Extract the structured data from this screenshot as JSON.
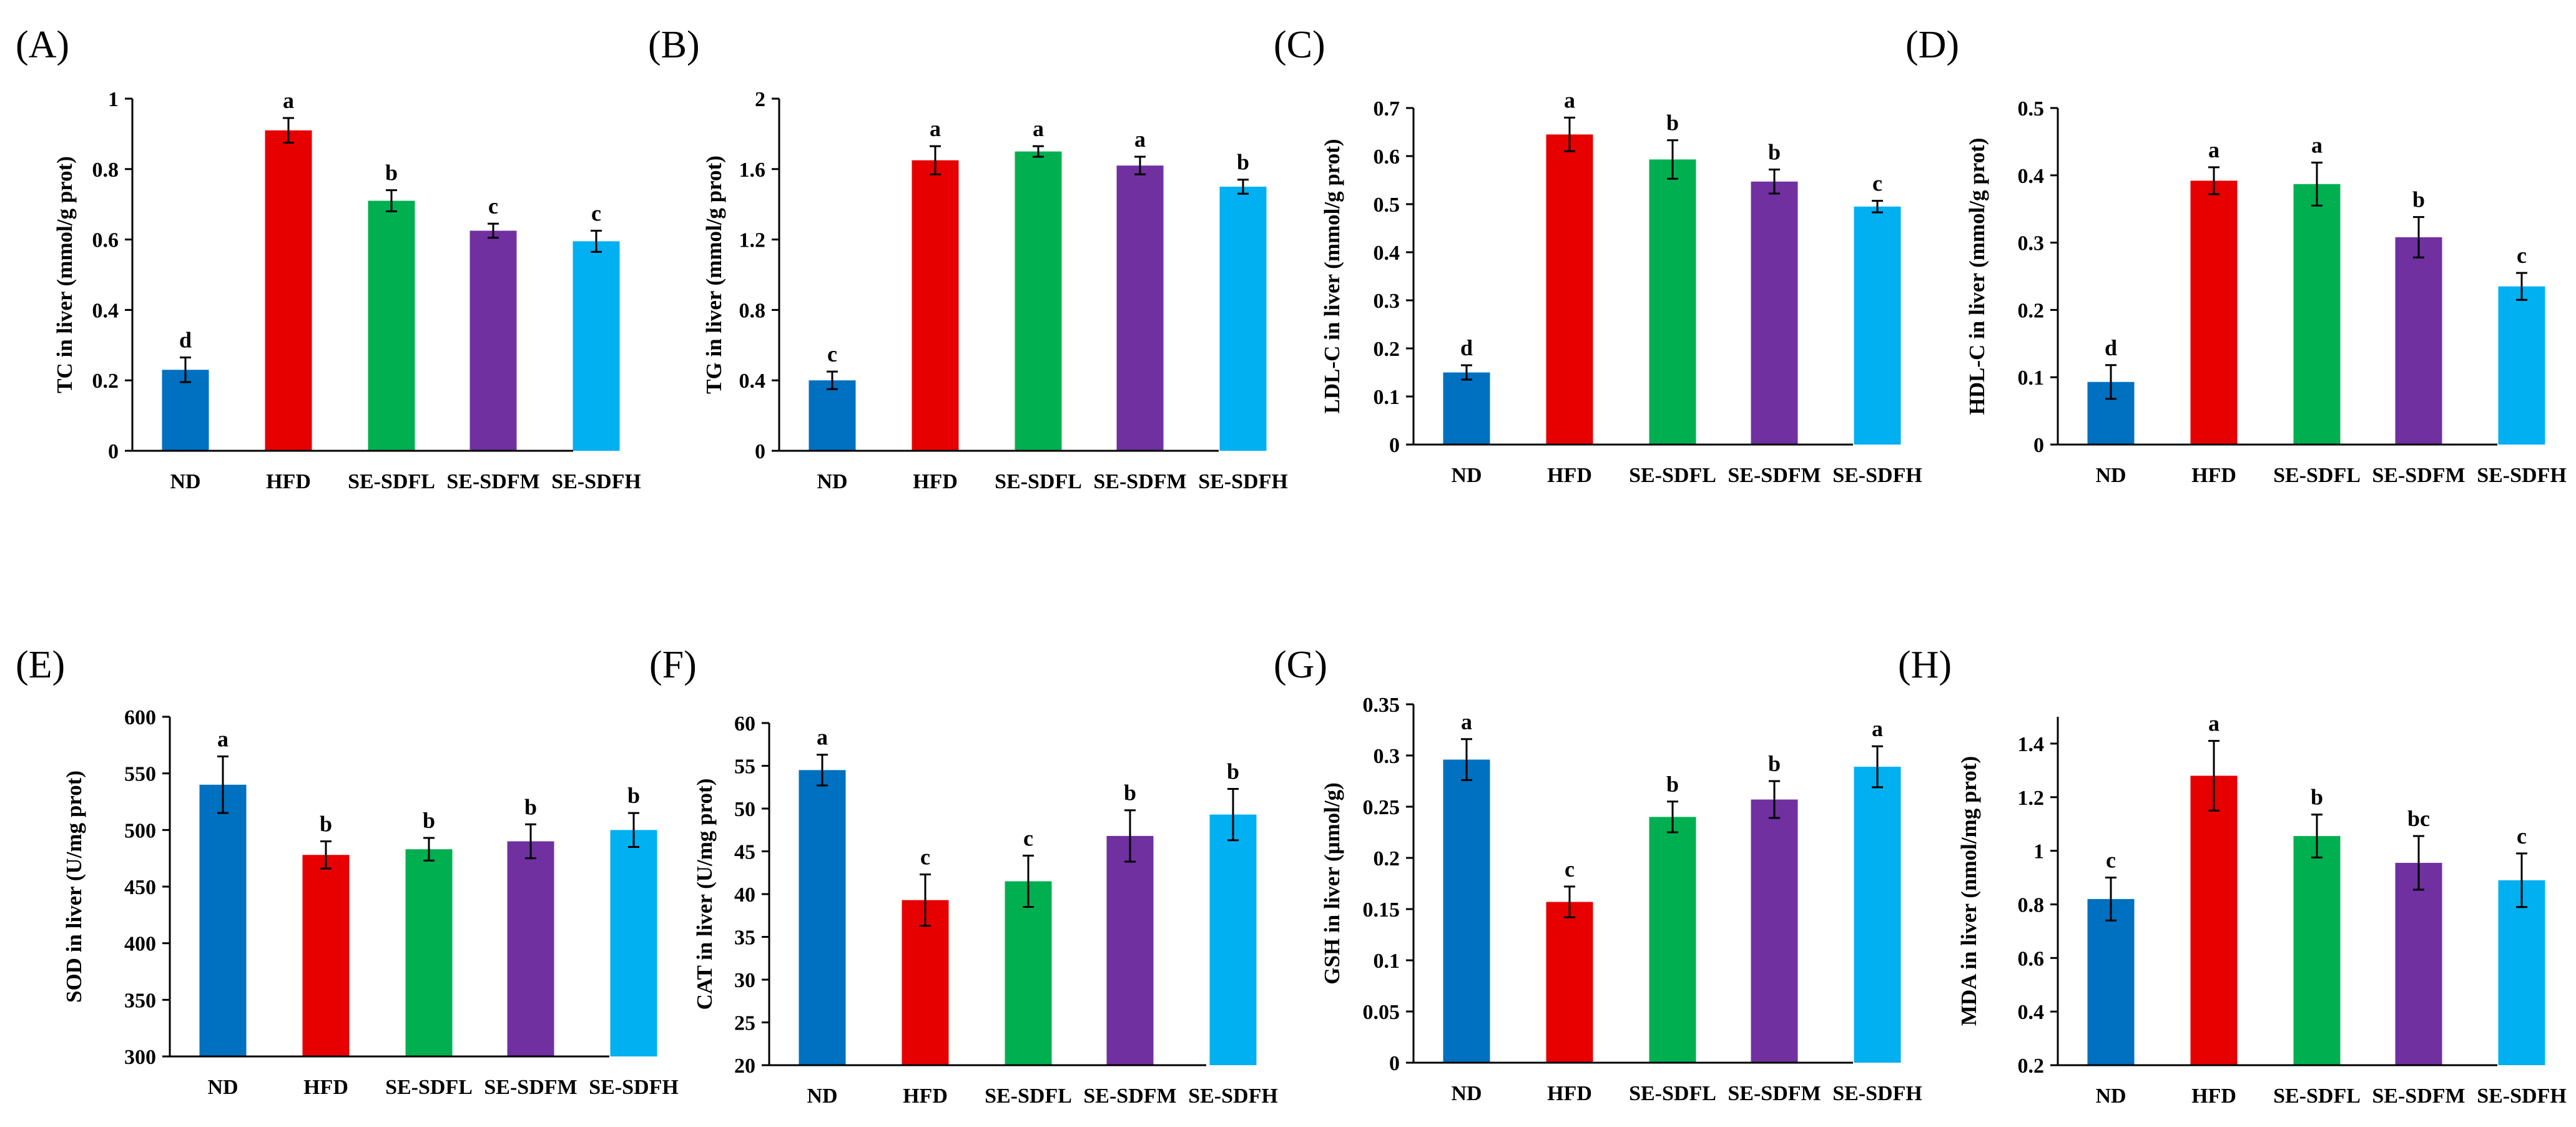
{
  "colors": {
    "ND": "#0070c0",
    "HFD": "#e60000",
    "SE-SDFL": "#00b050",
    "SE-SDFM": "#7030a0",
    "SE-SDFH": "#00b0f0"
  },
  "categories": [
    "ND",
    "HFD",
    "SE-SDFL",
    "SE-SDFM",
    "SE-SDFH"
  ],
  "chart_data": [
    {
      "type": "bar",
      "panel": "(A)",
      "title": "",
      "xlabel": "",
      "ylabel": "TC in liver (mmol/g prot)",
      "categories": [
        "ND",
        "HFD",
        "SE-SDFL",
        "SE-SDFM",
        "SE-SDFH"
      ],
      "values": [
        0.23,
        0.91,
        0.71,
        0.625,
        0.595
      ],
      "errors": [
        0.035,
        0.035,
        0.03,
        0.02,
        0.03
      ],
      "letters": [
        "d",
        "a",
        "b",
        "c",
        "c"
      ],
      "ylim": [
        0,
        1
      ],
      "ticks": [
        0,
        0.2,
        0.4,
        0.6,
        0.8,
        1
      ],
      "tick_labels": [
        "0",
        "0.2",
        "0.4",
        "0.6",
        "0.8",
        "1"
      ]
    },
    {
      "type": "bar",
      "panel": "(B)",
      "title": "",
      "xlabel": "",
      "ylabel": "TG in liver (mmol/g prot)",
      "categories": [
        "ND",
        "HFD",
        "SE-SDFL",
        "SE-SDFM",
        "SE-SDFH"
      ],
      "values": [
        0.4,
        1.65,
        1.7,
        1.62,
        1.5
      ],
      "errors": [
        0.05,
        0.08,
        0.03,
        0.05,
        0.04
      ],
      "letters": [
        "c",
        "a",
        "a",
        "a",
        "b"
      ],
      "ylim": [
        0,
        2
      ],
      "ticks": [
        0,
        0.4,
        0.8,
        1.2,
        1.6,
        2
      ],
      "tick_labels": [
        "0",
        "0.4",
        "0.8",
        "1.2",
        "1.6",
        "2"
      ]
    },
    {
      "type": "bar",
      "panel": "(C)",
      "title": "",
      "xlabel": "",
      "ylabel": "LDL-C in liver (mmol/g prot)",
      "categories": [
        "ND",
        "HFD",
        "SE-SDFL",
        "SE-SDFM",
        "SE-SDFH"
      ],
      "values": [
        0.15,
        0.645,
        0.593,
        0.547,
        0.495
      ],
      "errors": [
        0.015,
        0.035,
        0.04,
        0.025,
        0.012
      ],
      "letters": [
        "d",
        "a",
        "b",
        "b",
        "c"
      ],
      "ylim": [
        0,
        0.7
      ],
      "ticks": [
        0,
        0.1,
        0.2,
        0.3,
        0.4,
        0.5,
        0.6,
        0.7
      ],
      "tick_labels": [
        "0",
        "0.1",
        "0.2",
        "0.3",
        "0.4",
        "0.5",
        "0.6",
        "0.7"
      ]
    },
    {
      "type": "bar",
      "panel": "(D)",
      "title": "",
      "xlabel": "",
      "ylabel": "HDL-C in liver (mmol/g prot)",
      "categories": [
        "ND",
        "HFD",
        "SE-SDFL",
        "SE-SDFM",
        "SE-SDFH"
      ],
      "values": [
        0.093,
        0.392,
        0.387,
        0.308,
        0.235
      ],
      "errors": [
        0.025,
        0.02,
        0.032,
        0.03,
        0.02
      ],
      "letters": [
        "d",
        "a",
        "a",
        "b",
        "c"
      ],
      "ylim": [
        0,
        0.5
      ],
      "ticks": [
        0,
        0.1,
        0.2,
        0.3,
        0.4,
        0.5
      ],
      "tick_labels": [
        "0",
        "0.1",
        "0.2",
        "0.3",
        "0.4",
        "0.5"
      ]
    },
    {
      "type": "bar",
      "panel": "(E)",
      "title": "",
      "xlabel": "",
      "ylabel": "SOD in liver (U/mg prot)",
      "categories": [
        "ND",
        "HFD",
        "SE-SDFL",
        "SE-SDFM",
        "SE-SDFH"
      ],
      "values": [
        540,
        478,
        483,
        490,
        500
      ],
      "errors": [
        25,
        12,
        10,
        15,
        15
      ],
      "letters": [
        "a",
        "b",
        "b",
        "b",
        "b"
      ],
      "ylim": [
        300,
        600
      ],
      "ticks": [
        300,
        350,
        400,
        450,
        500,
        550,
        600
      ],
      "tick_labels": [
        "300",
        "350",
        "400",
        "450",
        "500",
        "550",
        "600"
      ]
    },
    {
      "type": "bar",
      "panel": "(F)",
      "title": "",
      "xlabel": "",
      "ylabel": "CAT in liver (U/mg prot)",
      "categories": [
        "ND",
        "HFD",
        "SE-SDFL",
        "SE-SDFM",
        "SE-SDFH"
      ],
      "values": [
        54.5,
        39.3,
        41.5,
        46.8,
        49.3
      ],
      "errors": [
        1.8,
        3.0,
        3.0,
        3.0,
        3.0
      ],
      "letters": [
        "a",
        "c",
        "c",
        "b",
        "b"
      ],
      "ylim": [
        20,
        60
      ],
      "ticks": [
        20,
        25,
        30,
        35,
        40,
        45,
        50,
        55,
        60
      ],
      "tick_labels": [
        "20",
        "25",
        "30",
        "35",
        "40",
        "45",
        "50",
        "55",
        "60"
      ]
    },
    {
      "type": "bar",
      "panel": "(G)",
      "title": "",
      "xlabel": "",
      "ylabel": "GSH in liver (μmol/g)",
      "categories": [
        "ND",
        "HFD",
        "SE-SDFL",
        "SE-SDFM",
        "SE-SDFH"
      ],
      "values": [
        0.296,
        0.157,
        0.24,
        0.257,
        0.289
      ],
      "errors": [
        0.02,
        0.015,
        0.015,
        0.018,
        0.02
      ],
      "letters": [
        "a",
        "c",
        "b",
        "b",
        "a"
      ],
      "ylim": [
        0,
        0.35
      ],
      "ticks": [
        0,
        0.05,
        0.1,
        0.15,
        0.2,
        0.25,
        0.3,
        0.35
      ],
      "tick_labels": [
        "0",
        "0.05",
        "0.1",
        "0.15",
        "0.2",
        "0.25",
        "0.3",
        "0.35"
      ]
    },
    {
      "type": "bar",
      "panel": "(H)",
      "title": "",
      "xlabel": "",
      "ylabel": "MDA in liver (nmol/mg prot)",
      "categories": [
        "ND",
        "HFD",
        "SE-SDFL",
        "SE-SDFM",
        "SE-SDFH"
      ],
      "values": [
        0.82,
        1.28,
        1.055,
        0.955,
        0.89
      ],
      "errors": [
        0.08,
        0.13,
        0.08,
        0.1,
        0.1
      ],
      "letters": [
        "c",
        "a",
        "b",
        "bc",
        "c"
      ],
      "ylim": [
        0.2,
        1.5
      ],
      "ticks": [
        0.2,
        0.4,
        0.6,
        0.8,
        1,
        1.2,
        1.4
      ],
      "tick_labels": [
        "0.2",
        "0.4",
        "0.6",
        "0.8",
        "1",
        "1.2",
        "1.4"
      ]
    }
  ]
}
